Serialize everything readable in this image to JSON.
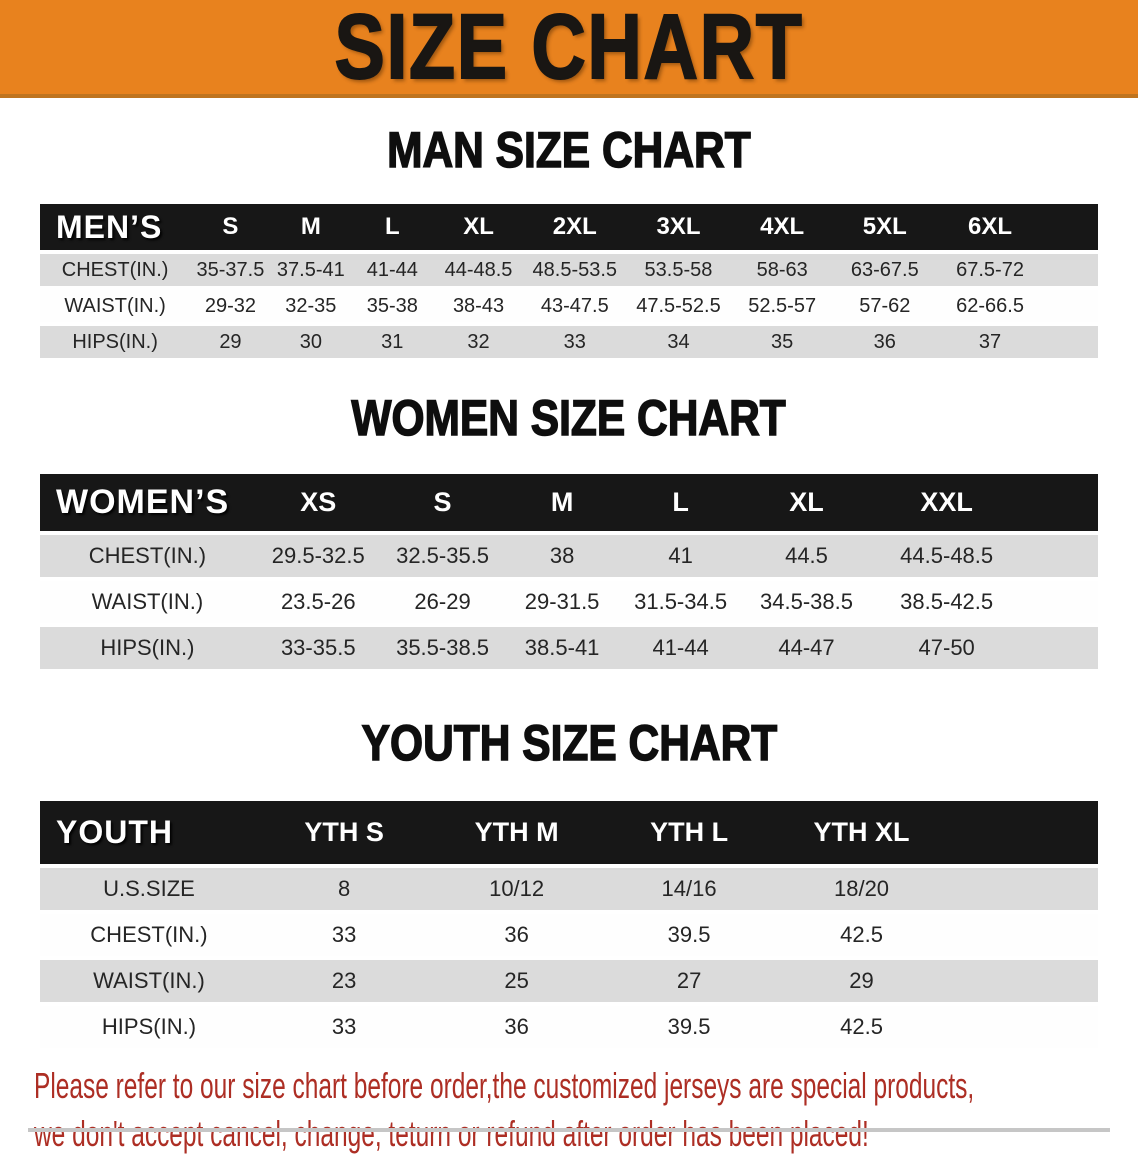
{
  "banner": {
    "title": "SIZE CHART",
    "bg_color": "#E8821E",
    "text_color": "#191613"
  },
  "sections": [
    {
      "title": "MAN SIZE CHART",
      "header_label": "MEN’S",
      "sizes": [
        "S",
        "M",
        "L",
        "XL",
        "2XL",
        "3XL",
        "4XL",
        "5XL",
        "6XL"
      ],
      "rows": [
        {
          "label": "CHEST(IN.)",
          "values": [
            "35-37.5",
            "37.5-41",
            "41-44",
            "44-48.5",
            "48.5-53.5",
            "53.5-58",
            "58-63",
            "63-67.5",
            "67.5-72"
          ]
        },
        {
          "label": "WAIST(IN.)",
          "values": [
            "29-32",
            "32-35",
            "35-38",
            "38-43",
            "43-47.5",
            "47.5-52.5",
            "52.5-57",
            "57-62",
            "62-66.5"
          ]
        },
        {
          "label": "HIPS(IN.)",
          "values": [
            "29",
            "30",
            "31",
            "32",
            "33",
            "34",
            "35",
            "36",
            "37"
          ]
        }
      ]
    },
    {
      "title": "WOMEN SIZE CHART",
      "header_label": "WOMEN’S",
      "sizes": [
        "XS",
        "S",
        "M",
        "L",
        "XL",
        "XXL"
      ],
      "rows": [
        {
          "label": "CHEST(IN.)",
          "values": [
            "29.5-32.5",
            "32.5-35.5",
            "38",
            "41",
            "44.5",
            "44.5-48.5"
          ]
        },
        {
          "label": "WAIST(IN.)",
          "values": [
            "23.5-26",
            "26-29",
            "29-31.5",
            "31.5-34.5",
            "34.5-38.5",
            "38.5-42.5"
          ]
        },
        {
          "label": "HIPS(IN.)",
          "values": [
            "33-35.5",
            "35.5-38.5",
            "38.5-41",
            "41-44",
            "44-47",
            "47-50"
          ]
        }
      ]
    },
    {
      "title": "YOUTH SIZE CHART",
      "header_label": "YOUTH",
      "sizes": [
        "YTH S",
        "YTH M",
        "YTH L",
        "YTH XL"
      ],
      "rows": [
        {
          "label": "U.S.SIZE",
          "values": [
            "8",
            "10/12",
            "14/16",
            "18/20"
          ]
        },
        {
          "label": "CHEST(IN.)",
          "values": [
            "33",
            "36",
            "39.5",
            "42.5"
          ]
        },
        {
          "label": "WAIST(IN.)",
          "values": [
            "23",
            "25",
            "27",
            "29"
          ]
        },
        {
          "label": "HIPS(IN.)",
          "values": [
            "33",
            "36",
            "39.5",
            "42.5"
          ]
        }
      ]
    }
  ],
  "disclaimer": {
    "line1": "Please refer to our size chart before order,the customized jerseys are special products,",
    "line2": "we don't accept cancel, change, teturn or refund after order has been placed!",
    "color": "#AD2E24"
  }
}
